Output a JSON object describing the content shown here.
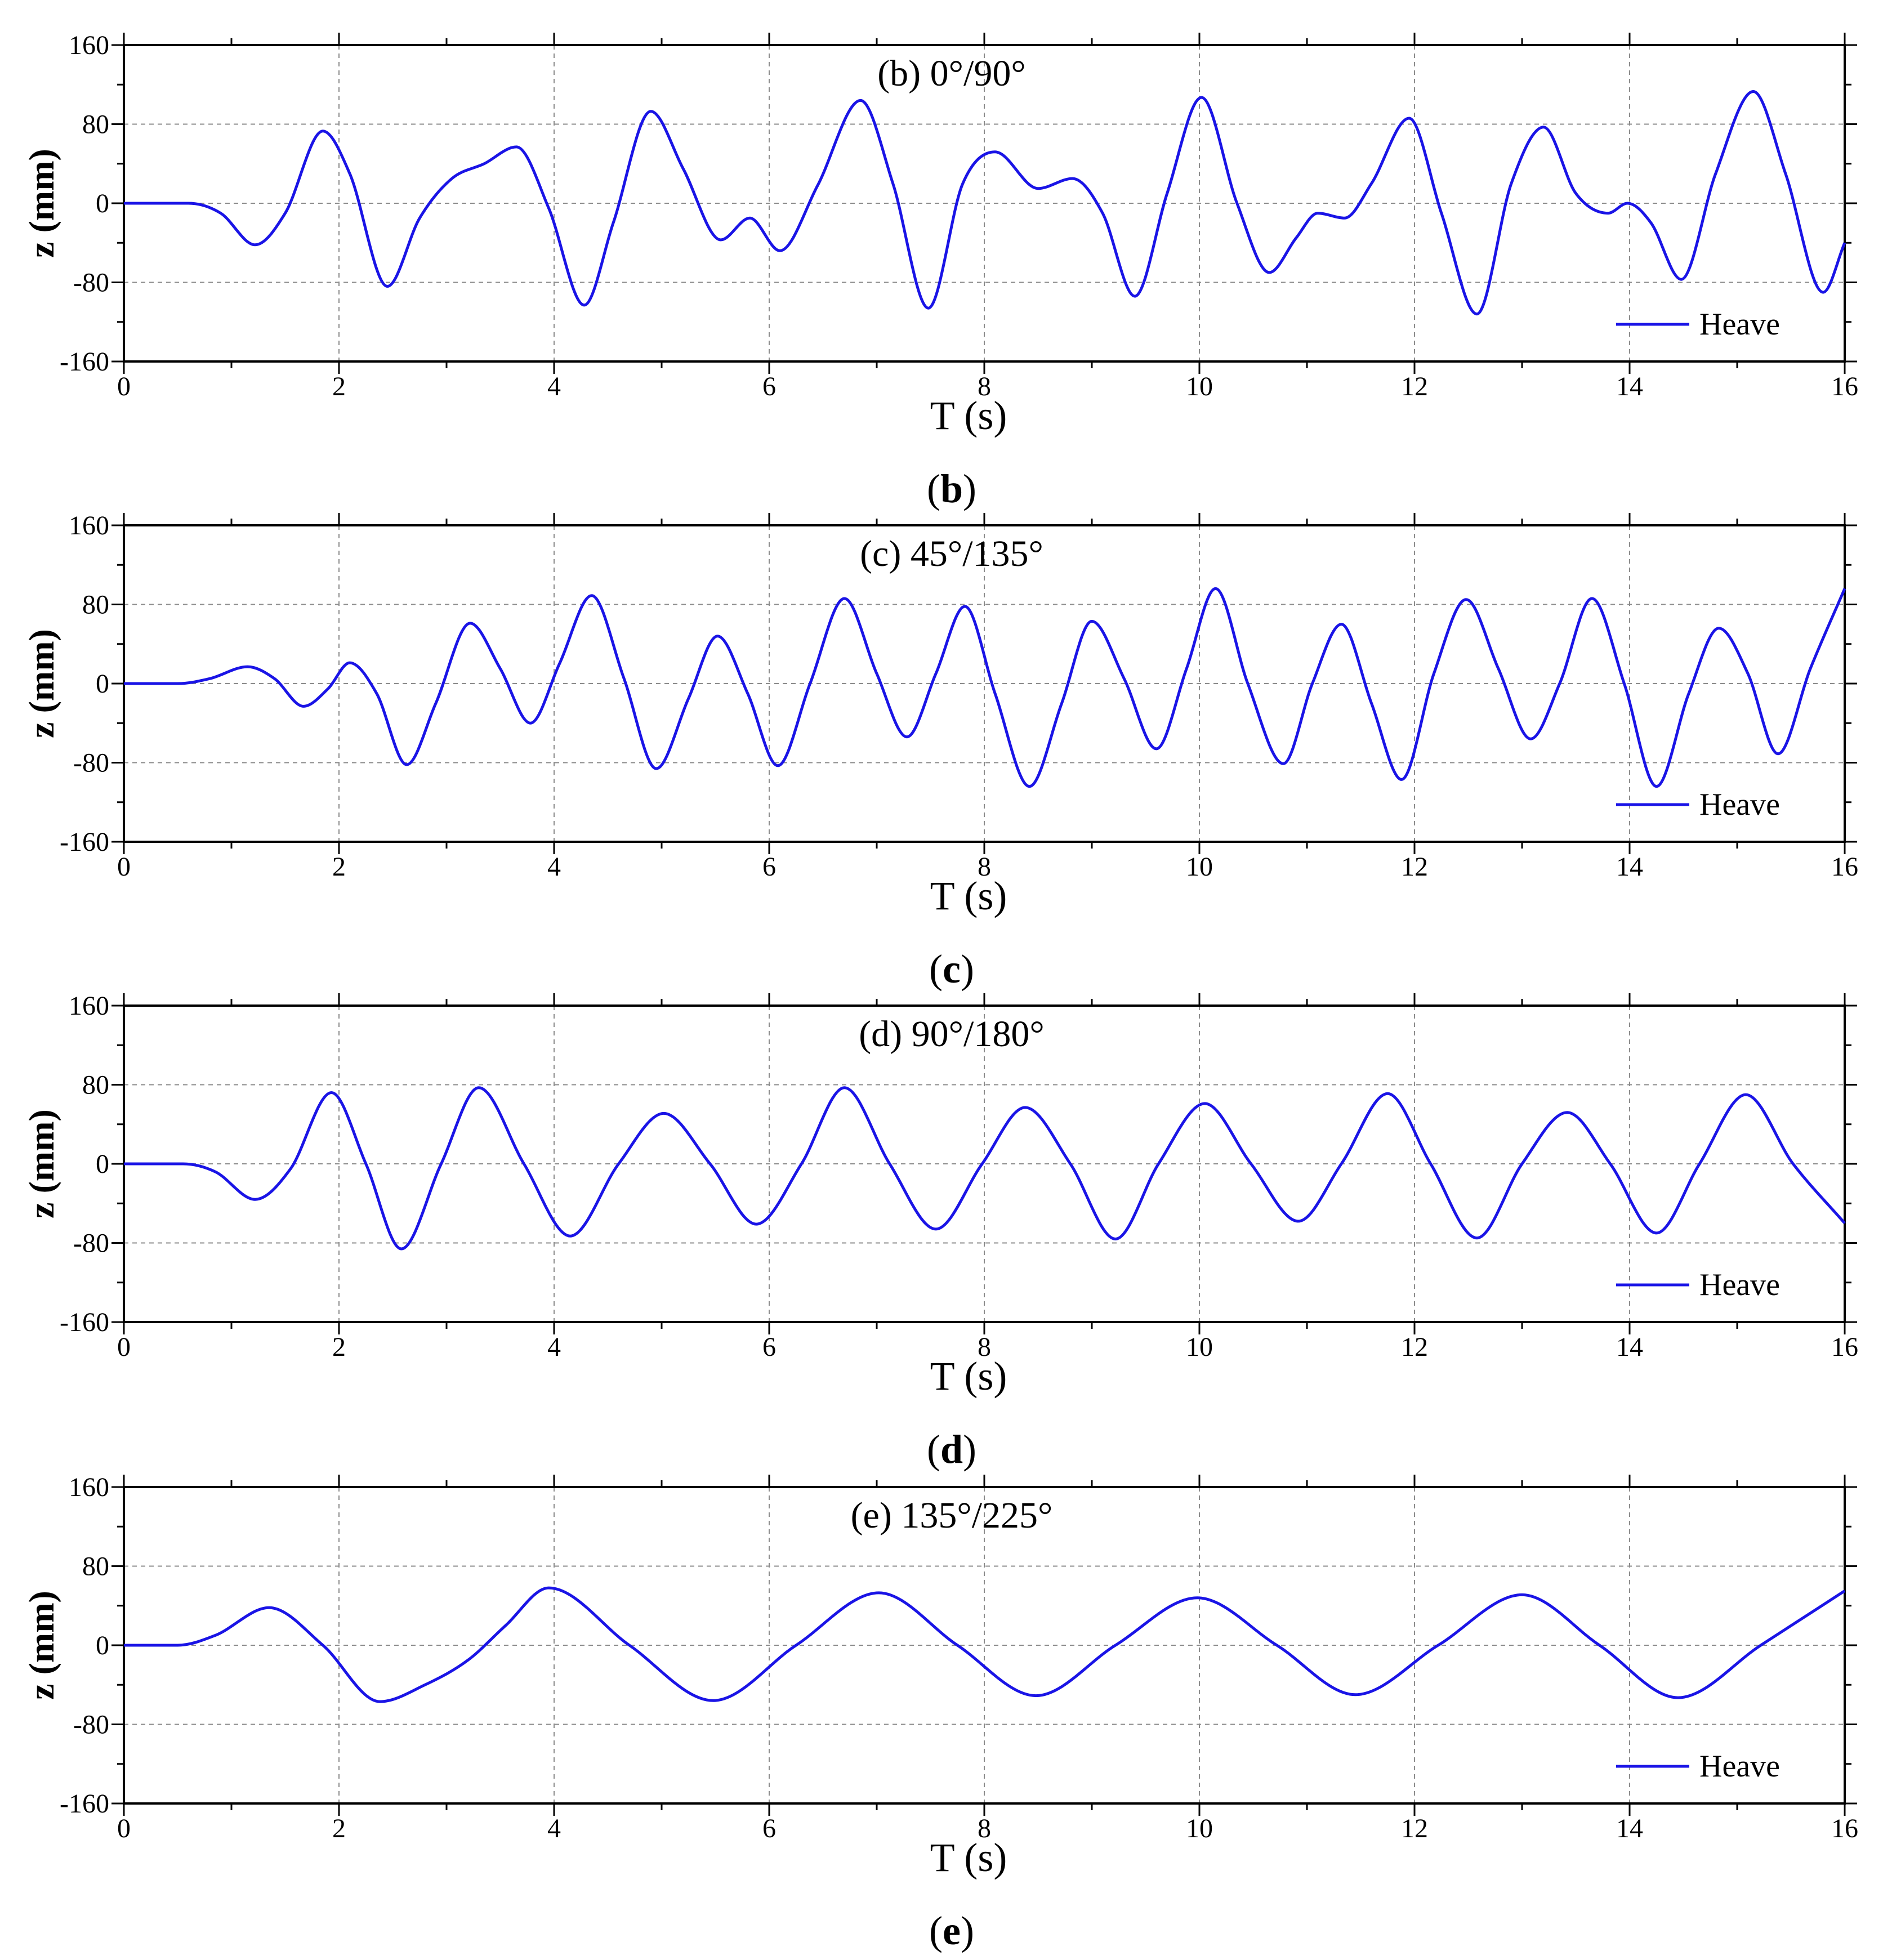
{
  "figure": {
    "panels": [
      {
        "caption_open": "(",
        "caption_letter": "b",
        "caption_close": ")"
      },
      {
        "caption_open": "(",
        "caption_letter": "c",
        "caption_close": ")"
      },
      {
        "caption_open": "(",
        "caption_letter": "d",
        "caption_close": ")"
      },
      {
        "caption_open": "(",
        "caption_letter": "e",
        "caption_close": ")"
      }
    ]
  },
  "colors": {
    "series": "#1a14e6",
    "grid": "#8c8c8c",
    "axis": "#000000"
  },
  "chart_data": [
    {
      "type": "line",
      "title": "(b) 0°/90°",
      "xlabel": "T (s)",
      "ylabel": "z (mm)",
      "xlim": [
        0,
        16
      ],
      "ylim": [
        -160,
        160
      ],
      "xticks": [
        0,
        2,
        4,
        6,
        8,
        10,
        12,
        14,
        16
      ],
      "yticks": [
        160,
        80,
        0,
        -80,
        -160
      ],
      "legend": "bottom-right",
      "grid": true,
      "series": [
        {
          "name": "Heave",
          "x": [
            0,
            0.6,
            0.9,
            1.22,
            1.5,
            1.85,
            2.1,
            2.45,
            2.75,
            3.05,
            3.35,
            3.65,
            3.95,
            4.28,
            4.55,
            4.9,
            5.2,
            5.55,
            5.82,
            6.1,
            6.45,
            6.85,
            7.15,
            7.48,
            7.8,
            8.1,
            8.5,
            8.82,
            9.1,
            9.4,
            9.7,
            10.02,
            10.35,
            10.65,
            10.9,
            11.1,
            11.35,
            11.6,
            11.95,
            12.25,
            12.58,
            12.9,
            13.2,
            13.5,
            13.8,
            13.98,
            14.2,
            14.48,
            14.8,
            15.15,
            15.45,
            15.8,
            16
          ],
          "values": [
            0,
            0,
            -10,
            -42,
            -10,
            73,
            30,
            -84,
            -15,
            25,
            40,
            57,
            -5,
            -103,
            -20,
            93,
            35,
            -37,
            -15,
            -48,
            18,
            104,
            20,
            -106,
            20,
            52,
            15,
            25,
            -10,
            -94,
            10,
            107,
            0,
            -70,
            -35,
            -10,
            -15,
            20,
            86,
            -10,
            -112,
            20,
            77,
            10,
            -10,
            0,
            -20,
            -77,
            30,
            113,
            30,
            -90,
            -40
          ]
        }
      ]
    },
    {
      "type": "line",
      "title": "(c) 45°/135°",
      "xlabel": "T (s)",
      "ylabel": "z (mm)",
      "xlim": [
        0,
        16
      ],
      "ylim": [
        -160,
        160
      ],
      "xticks": [
        0,
        2,
        4,
        6,
        8,
        10,
        12,
        14,
        16
      ],
      "yticks": [
        160,
        80,
        0,
        -80,
        -160
      ],
      "legend": "bottom-right",
      "grid": true,
      "series": [
        {
          "name": "Heave",
          "x": [
            0,
            0.5,
            0.8,
            1.15,
            1.4,
            1.67,
            1.9,
            2.1,
            2.35,
            2.63,
            2.9,
            3.22,
            3.5,
            3.78,
            4.05,
            4.35,
            4.65,
            4.95,
            5.25,
            5.52,
            5.8,
            6.08,
            6.38,
            6.7,
            7.0,
            7.28,
            7.55,
            7.82,
            8.1,
            8.42,
            8.72,
            9.0,
            9.3,
            9.6,
            9.88,
            10.15,
            10.45,
            10.78,
            11.05,
            11.32,
            11.6,
            11.88,
            12.18,
            12.48,
            12.78,
            13.08,
            13.35,
            13.65,
            13.95,
            14.25,
            14.55,
            14.83,
            15.1,
            15.38,
            15.68,
            16
          ],
          "values": [
            0,
            0,
            5,
            17,
            5,
            -23,
            -5,
            21,
            -10,
            -82,
            -20,
            61,
            15,
            -40,
            20,
            89,
            5,
            -86,
            -15,
            48,
            -10,
            -83,
            0,
            86,
            10,
            -54,
            10,
            78,
            -10,
            -104,
            -20,
            63,
            5,
            -66,
            15,
            96,
            0,
            -81,
            0,
            60,
            -20,
            -97,
            10,
            85,
            15,
            -56,
            0,
            86,
            0,
            -104,
            -10,
            56,
            10,
            -71,
            15,
            96
          ]
        }
      ]
    },
    {
      "type": "line",
      "title": "(d) 90°/180°",
      "xlabel": "T (s)",
      "ylabel": "z (mm)",
      "xlim": [
        0,
        16
      ],
      "ylim": [
        -160,
        160
      ],
      "xticks": [
        0,
        2,
        4,
        6,
        8,
        10,
        12,
        14,
        16
      ],
      "yticks": [
        160,
        80,
        0,
        -80,
        -160
      ],
      "legend": "bottom-right",
      "grid": true,
      "series": [
        {
          "name": "Heave",
          "x": [
            0,
            0.55,
            0.85,
            1.22,
            1.55,
            1.93,
            2.25,
            2.58,
            2.95,
            3.3,
            3.72,
            4.15,
            4.6,
            5.02,
            5.45,
            5.88,
            6.3,
            6.7,
            7.12,
            7.55,
            7.98,
            8.38,
            8.8,
            9.22,
            9.62,
            10.05,
            10.48,
            10.92,
            11.32,
            11.75,
            12.15,
            12.58,
            13.0,
            13.42,
            13.82,
            14.25,
            14.65,
            15.08,
            15.52,
            16
          ],
          "values": [
            0,
            0,
            -8,
            -36,
            -5,
            72,
            0,
            -86,
            0,
            77,
            0,
            -73,
            0,
            51,
            0,
            -61,
            0,
            77,
            0,
            -66,
            0,
            57,
            0,
            -76,
            0,
            61,
            0,
            -58,
            0,
            71,
            0,
            -75,
            0,
            52,
            0,
            -70,
            0,
            70,
            0,
            -60
          ]
        }
      ]
    },
    {
      "type": "line",
      "title": "(e) 135°/225°",
      "xlabel": "T (s)",
      "ylabel": "z (mm)",
      "xlim": [
        0,
        16
      ],
      "ylim": [
        -160,
        160
      ],
      "xticks": [
        0,
        2,
        4,
        6,
        8,
        10,
        12,
        14,
        16
      ],
      "yticks": [
        160,
        80,
        0,
        -80,
        -160
      ],
      "legend": "bottom-right",
      "grid": true,
      "series": [
        {
          "name": "Heave",
          "x": [
            0,
            0.5,
            0.85,
            1.35,
            1.85,
            2.38,
            2.8,
            3.2,
            3.55,
            3.95,
            4.7,
            5.48,
            6.25,
            7.02,
            7.75,
            8.48,
            9.22,
            9.98,
            10.72,
            11.45,
            12.22,
            13.0,
            13.72,
            14.45,
            15.22,
            16
          ],
          "values": [
            0,
            0,
            10,
            38,
            0,
            -57,
            -40,
            -15,
            20,
            58,
            0,
            -56,
            0,
            53,
            0,
            -51,
            0,
            48,
            0,
            -50,
            0,
            51,
            0,
            -53,
            0,
            55
          ]
        }
      ]
    }
  ]
}
